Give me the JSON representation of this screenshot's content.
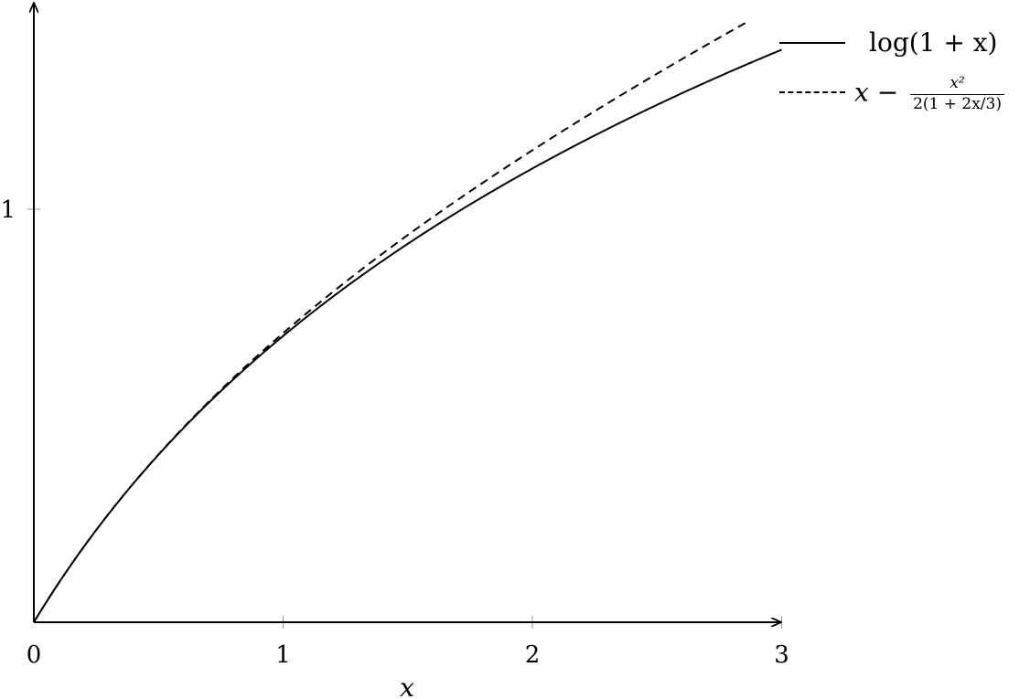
{
  "chart_data": {
    "type": "line",
    "xlabel": "x",
    "ylabel": "",
    "xlim": [
      0,
      3
    ],
    "ylim": [
      0,
      1.45
    ],
    "x_ticks": [
      {
        "value": 0,
        "label": "0"
      },
      {
        "value": 1,
        "label": "1"
      },
      {
        "value": 2,
        "label": "2"
      },
      {
        "value": 3,
        "label": "3"
      }
    ],
    "y_ticks": [
      {
        "value": 1,
        "label": "1"
      }
    ],
    "grid": false,
    "legend_position": "top-right",
    "series": [
      {
        "name": "log(1 + x)",
        "style": "solid",
        "function": "log(1+x)",
        "x": [
          0,
          0.25,
          0.5,
          0.75,
          1,
          1.5,
          2,
          2.5,
          3
        ],
        "y": [
          0,
          0.223,
          0.405,
          0.56,
          0.693,
          0.916,
          1.099,
          1.253,
          1.386
        ]
      },
      {
        "name": "x − x²/(2(1 + 2x/3))",
        "style": "dashed",
        "function": "x - x^2/(2*(1+2x/3))",
        "x": [
          0,
          0.25,
          0.5,
          0.75,
          1,
          1.5,
          2,
          2.5,
          3
        ],
        "y": [
          0,
          0.223,
          0.41,
          0.575,
          0.7,
          0.964,
          1.143,
          1.38,
          1.5
        ]
      }
    ],
    "legend": {
      "series1_label": "log(1 + x)",
      "series2_label_prefix": "x −",
      "series2_frac_numerator": "x²",
      "series2_frac_denominator": "2(1 + 2x/3)"
    },
    "colors": {
      "line": "#000000",
      "background": "#ffffff",
      "tick": "#9a9a9a"
    }
  }
}
